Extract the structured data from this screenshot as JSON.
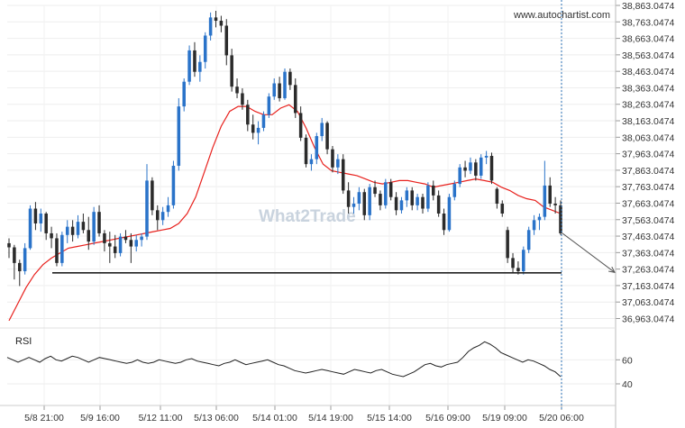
{
  "source_label": "www.autochartist.com",
  "watermark": "What2Trade",
  "chart_data": {
    "type": "candlestick",
    "y_ticks": [
      "38,863.0474",
      "38,763.0474",
      "38,663.0474",
      "38,563.0474",
      "38,463.0474",
      "38,363.0474",
      "38,263.0474",
      "38,163.0474",
      "38,063.0474",
      "37,963.0474",
      "37,863.0474",
      "37,763.0474",
      "37,663.0474",
      "37,563.0474",
      "37,463.0474",
      "37,363.0474",
      "37,263.0474",
      "37,163.0474",
      "37,063.0474",
      "36,963.0474"
    ],
    "y_tick_values": [
      38863.0474,
      38763.0474,
      38663.0474,
      38563.0474,
      38463.0474,
      38363.0474,
      38263.0474,
      38163.0474,
      38063.0474,
      37963.0474,
      37863.0474,
      37763.0474,
      37663.0474,
      37563.0474,
      37463.0474,
      37363.0474,
      37263.0474,
      37163.0474,
      37063.0474,
      36963.0474
    ],
    "ylim": [
      36900,
      38880
    ],
    "x_ticks": [
      "5/8 21:00",
      "5/9 16:00",
      "5/12 11:00",
      "5/13 06:00",
      "5/14 01:00",
      "5/14 19:00",
      "5/15 14:00",
      "5/16 09:00",
      "5/19 09:00",
      "5/20 06:00"
    ],
    "support_level": 37240,
    "forecast": {
      "from_price": 37480,
      "to_price": 37243
    },
    "candles": [
      [
        37420,
        37450,
        37330,
        37395
      ],
      [
        37395,
        37410,
        37200,
        37300
      ],
      [
        37300,
        37320,
        37160,
        37250
      ],
      [
        37250,
        37420,
        37230,
        37390
      ],
      [
        37390,
        37650,
        37380,
        37630
      ],
      [
        37630,
        37670,
        37500,
        37540
      ],
      [
        37540,
        37630,
        37490,
        37600
      ],
      [
        37600,
        37610,
        37440,
        37480
      ],
      [
        37480,
        37520,
        37390,
        37450
      ],
      [
        37450,
        37480,
        37280,
        37300
      ],
      [
        37300,
        37490,
        37280,
        37470
      ],
      [
        37470,
        37560,
        37420,
        37520
      ],
      [
        37520,
        37560,
        37430,
        37470
      ],
      [
        37470,
        37590,
        37450,
        37550
      ],
      [
        37550,
        37600,
        37480,
        37500
      ],
      [
        37500,
        37580,
        37380,
        37430
      ],
      [
        37430,
        37640,
        37410,
        37610
      ],
      [
        37610,
        37650,
        37460,
        37480
      ],
      [
        37480,
        37500,
        37370,
        37420
      ],
      [
        37420,
        37490,
        37300,
        37400
      ],
      [
        37400,
        37470,
        37330,
        37360
      ],
      [
        37360,
        37480,
        37340,
        37460
      ],
      [
        37460,
        37500,
        37420,
        37440
      ],
      [
        37440,
        37480,
        37300,
        37400
      ],
      [
        37400,
        37470,
        37370,
        37440
      ],
      [
        37440,
        37480,
        37400,
        37460
      ],
      [
        37460,
        37900,
        37440,
        37800
      ],
      [
        37800,
        37820,
        37590,
        37620
      ],
      [
        37620,
        37650,
        37500,
        37560
      ],
      [
        37560,
        37640,
        37530,
        37610
      ],
      [
        37610,
        37700,
        37580,
        37650
      ],
      [
        37650,
        37920,
        37630,
        37890
      ],
      [
        37890,
        38300,
        37860,
        38250
      ],
      [
        38250,
        38420,
        38220,
        38400
      ],
      [
        38400,
        38620,
        38380,
        38590
      ],
      [
        38590,
        38640,
        38430,
        38460
      ],
      [
        38460,
        38560,
        38400,
        38520
      ],
      [
        38520,
        38700,
        38480,
        38680
      ],
      [
        38680,
        38820,
        38650,
        38790
      ],
      [
        38790,
        38830,
        38730,
        38770
      ],
      [
        38770,
        38800,
        38700,
        38740
      ],
      [
        38740,
        38780,
        38500,
        38560
      ],
      [
        38560,
        38600,
        38340,
        38370
      ],
      [
        38370,
        38420,
        38300,
        38330
      ],
      [
        38330,
        38360,
        38230,
        38260
      ],
      [
        38260,
        38290,
        38100,
        38140
      ],
      [
        38140,
        38200,
        38050,
        38090
      ],
      [
        38090,
        38160,
        38020,
        38120
      ],
      [
        38120,
        38220,
        38100,
        38200
      ],
      [
        38200,
        38330,
        38180,
        38310
      ],
      [
        38310,
        38420,
        38290,
        38390
      ],
      [
        38390,
        38430,
        38280,
        38300
      ],
      [
        38300,
        38480,
        38290,
        38460
      ],
      [
        38460,
        38480,
        38350,
        38380
      ],
      [
        38380,
        38420,
        38180,
        38210
      ],
      [
        38210,
        38250,
        38040,
        38060
      ],
      [
        38060,
        38080,
        37880,
        37900
      ],
      [
        37900,
        37960,
        37860,
        37930
      ],
      [
        37930,
        38090,
        37900,
        38070
      ],
      [
        38070,
        38180,
        38040,
        38150
      ],
      [
        38150,
        38160,
        37960,
        37990
      ],
      [
        37990,
        38010,
        37850,
        37880
      ],
      [
        37880,
        37960,
        37840,
        37930
      ],
      [
        37930,
        37960,
        37720,
        37740
      ],
      [
        37740,
        37790,
        37600,
        37640
      ],
      [
        37640,
        37700,
        37600,
        37660
      ],
      [
        37660,
        37760,
        37620,
        37730
      ],
      [
        37730,
        37750,
        37560,
        37590
      ],
      [
        37590,
        37780,
        37560,
        37760
      ],
      [
        37760,
        37800,
        37700,
        37720
      ],
      [
        37720,
        37740,
        37620,
        37650
      ],
      [
        37650,
        37810,
        37630,
        37790
      ],
      [
        37790,
        37810,
        37680,
        37700
      ],
      [
        37700,
        37730,
        37590,
        37620
      ],
      [
        37620,
        37700,
        37600,
        37680
      ],
      [
        37680,
        37760,
        37640,
        37740
      ],
      [
        37740,
        37760,
        37620,
        37650
      ],
      [
        37650,
        37720,
        37620,
        37700
      ],
      [
        37700,
        37720,
        37600,
        37630
      ],
      [
        37630,
        37790,
        37610,
        37770
      ],
      [
        37770,
        37800,
        37680,
        37710
      ],
      [
        37710,
        37740,
        37580,
        37600
      ],
      [
        37600,
        37630,
        37470,
        37500
      ],
      [
        37500,
        37720,
        37490,
        37700
      ],
      [
        37700,
        37800,
        37680,
        37780
      ],
      [
        37780,
        37900,
        37760,
        37880
      ],
      [
        37880,
        37920,
        37820,
        37860
      ],
      [
        37860,
        37940,
        37840,
        37910
      ],
      [
        37910,
        37930,
        37800,
        37830
      ],
      [
        37830,
        37960,
        37810,
        37940
      ],
      [
        37940,
        37980,
        37900,
        37950
      ],
      [
        37950,
        37970,
        37780,
        37800
      ],
      [
        37750,
        37760,
        37630,
        37660
      ],
      [
        37660,
        37680,
        37580,
        37600
      ],
      [
        37500,
        37520,
        37300,
        37330
      ],
      [
        37330,
        37360,
        37240,
        37270
      ],
      [
        37270,
        37310,
        37230,
        37250
      ],
      [
        37250,
        37400,
        37230,
        37380
      ],
      [
        37380,
        37520,
        37360,
        37500
      ],
      [
        37500,
        37590,
        37470,
        37560
      ],
      [
        37560,
        37600,
        37500,
        37580
      ],
      [
        37580,
        37920,
        37560,
        37770
      ],
      [
        37770,
        37820,
        37640,
        37660
      ],
      [
        37660,
        37700,
        37600,
        37650
      ],
      [
        37650,
        37680,
        37470,
        37480
      ]
    ],
    "ma": [
      36950,
      37050,
      37150,
      37230,
      37290,
      37330,
      37360,
      37390,
      37400,
      37410,
      37420,
      37430,
      37440,
      37450,
      37460,
      37470,
      37480,
      37490,
      37500,
      37510,
      37540,
      37600,
      37700,
      37850,
      38000,
      38130,
      38220,
      38250,
      38250,
      38220,
      38200,
      38200,
      38240,
      38260,
      38220,
      38120,
      38000,
      37900,
      37860,
      37850,
      37840,
      37830,
      37810,
      37790,
      37780,
      37790,
      37800,
      37800,
      37790,
      37780,
      37760,
      37770,
      37780,
      37790,
      37800,
      37810,
      37800,
      37790,
      37760,
      37740,
      37710,
      37690,
      37680,
      37640,
      37620,
      37600
    ],
    "rsi_ticks": [
      60,
      40
    ],
    "rsi_ylim": [
      25,
      85
    ],
    "rsi_label": "RSI",
    "rsi": [
      62,
      60,
      58,
      60,
      62,
      60,
      58,
      61,
      63,
      60,
      59,
      61,
      63,
      62,
      60,
      58,
      60,
      62,
      61,
      60,
      59,
      58,
      57,
      58,
      60,
      58,
      57,
      58,
      60,
      59,
      58,
      57,
      58,
      60,
      61,
      59,
      58,
      57,
      56,
      55,
      57,
      58,
      60,
      58,
      56,
      57,
      58,
      59,
      60,
      58,
      56,
      55,
      53,
      51,
      50,
      49,
      50,
      51,
      52,
      51,
      50,
      49,
      48,
      50,
      52,
      51,
      50,
      49,
      51,
      52,
      50,
      48,
      47,
      46,
      48,
      50,
      53,
      56,
      57,
      55,
      54,
      56,
      57,
      58,
      62,
      67,
      70,
      72,
      75,
      73,
      70,
      66,
      64,
      62,
      60,
      58,
      60,
      59,
      57,
      55,
      52,
      50,
      46
    ]
  }
}
